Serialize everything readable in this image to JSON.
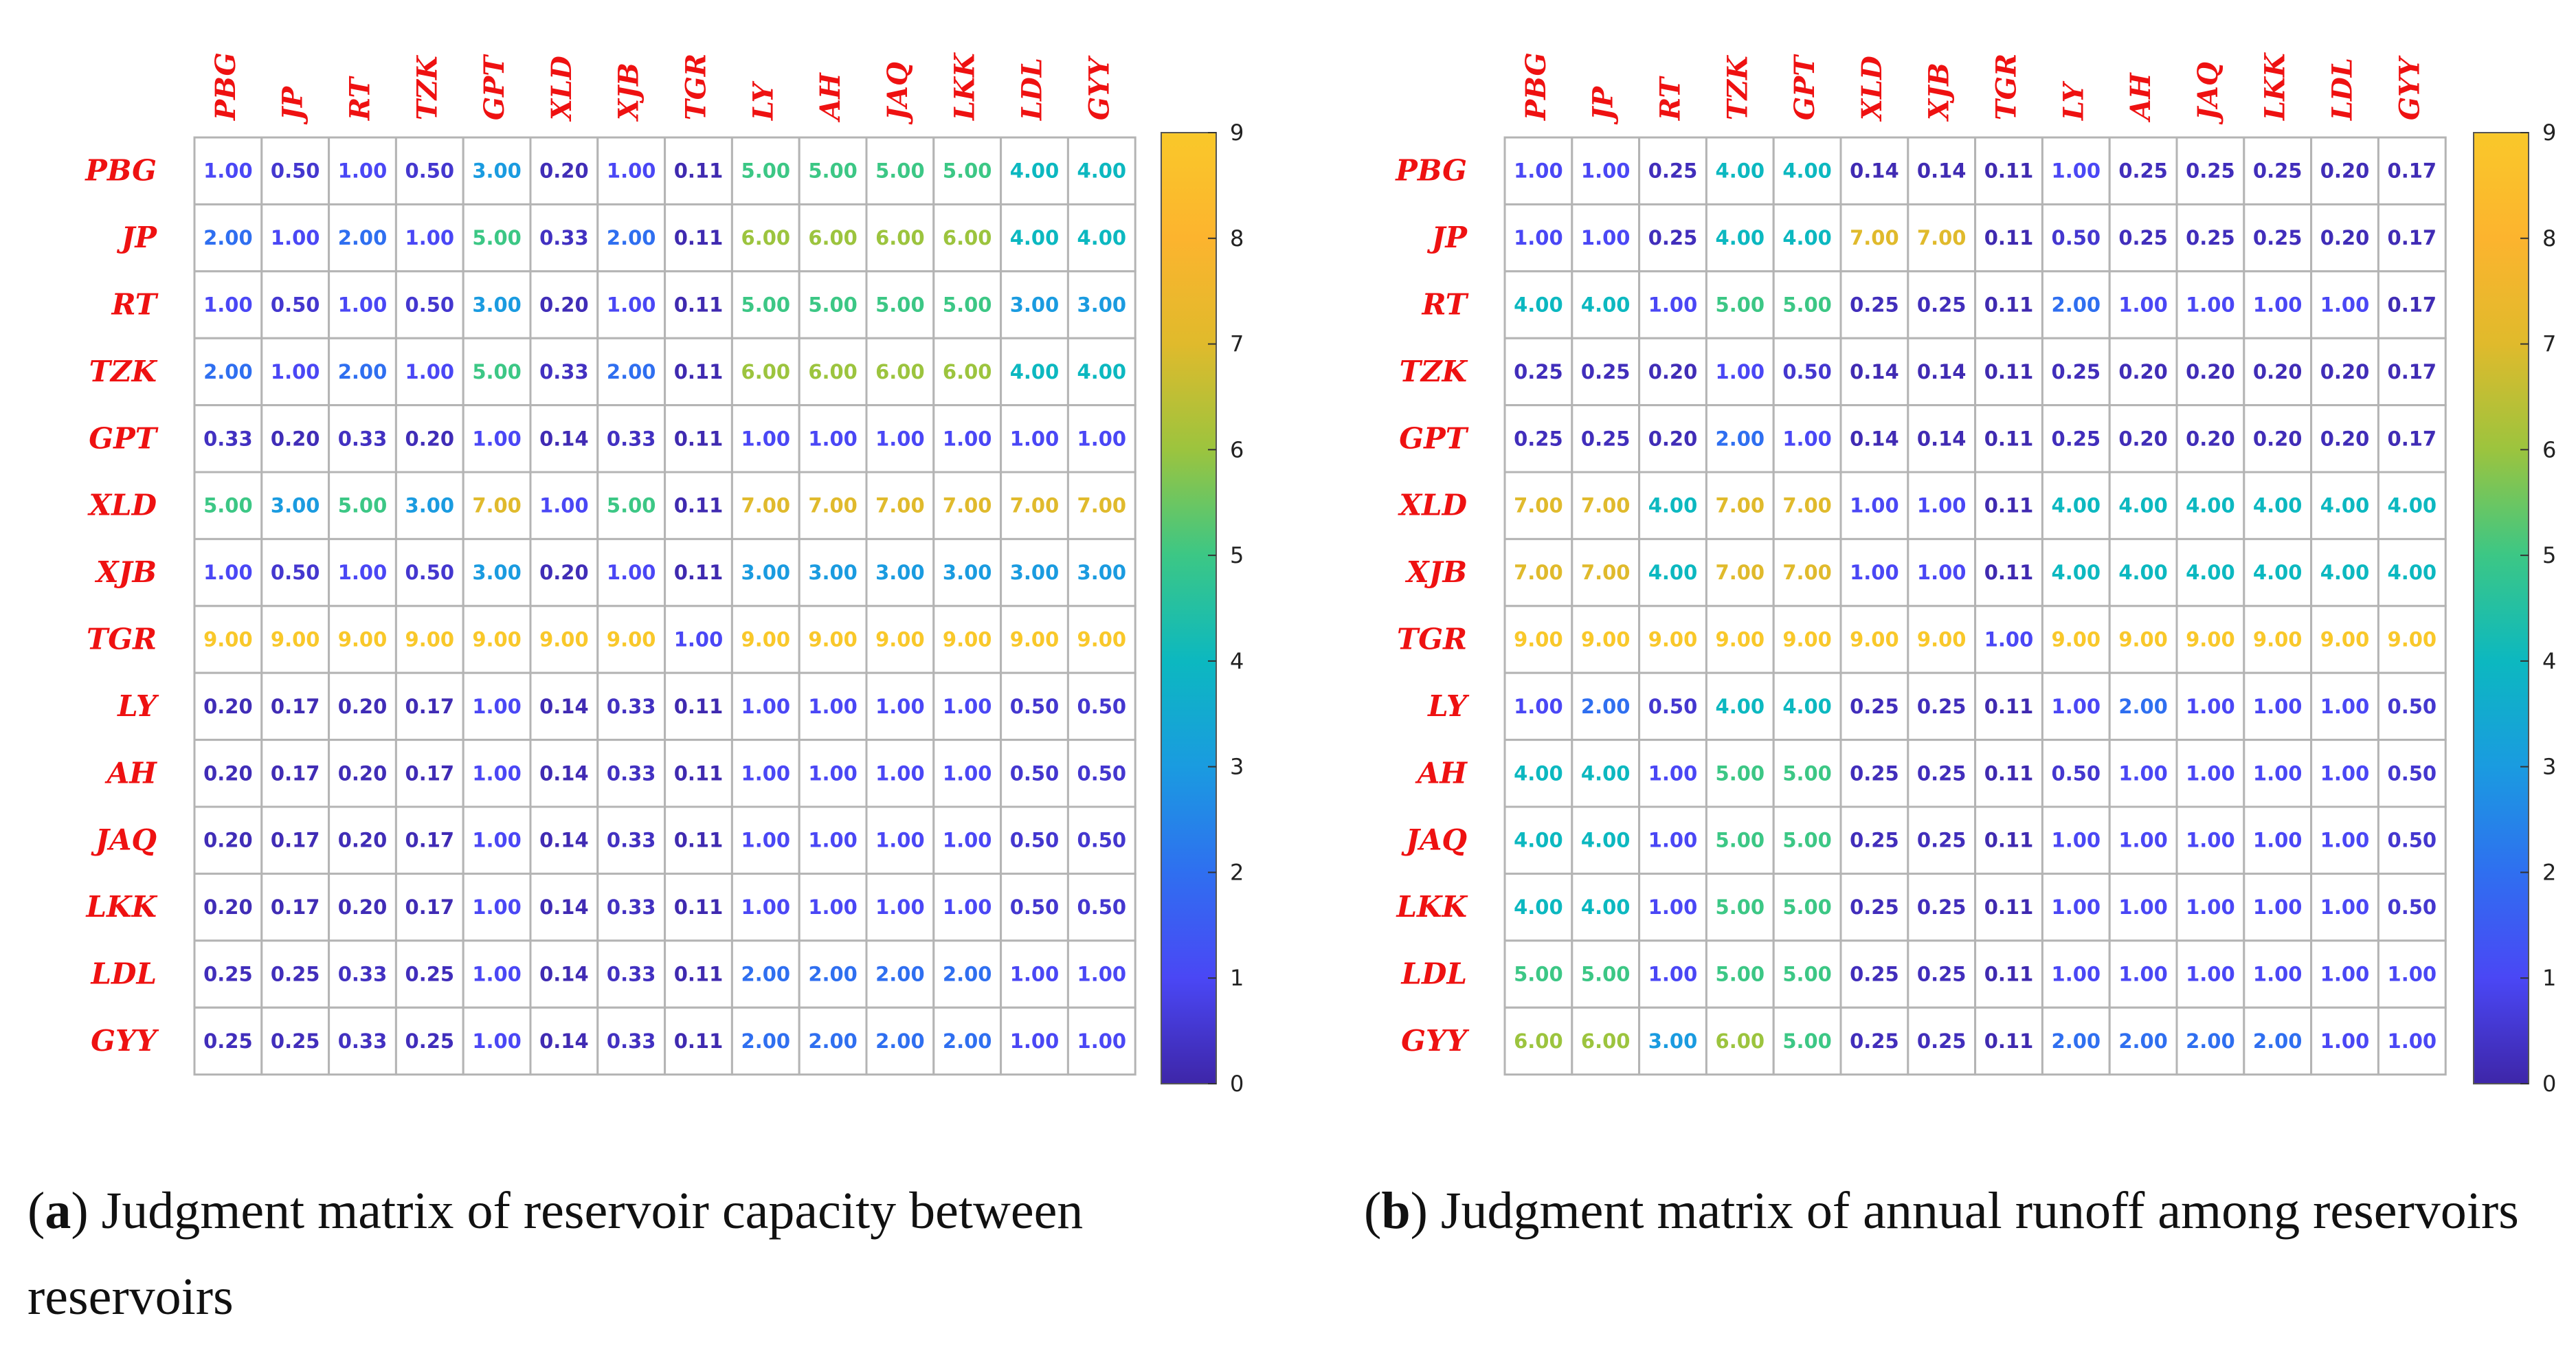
{
  "colors": {
    "label_red": "#ee1111",
    "grid": "#b4b4b4",
    "colormap": [
      "#3e26a8",
      "#4a47f5",
      "#2f6ff0",
      "#1a9be0",
      "#0cb8c0",
      "#3cc785",
      "#9cc43e",
      "#e0ba2c",
      "#fcb42e",
      "#f9c82a"
    ]
  },
  "chart_data": [
    {
      "type": "heatmap",
      "panel": "a",
      "caption_letter": "a",
      "caption_text": "Judgment matrix of reservoir capacity between reservoirs",
      "rows": [
        "PBG",
        "JP",
        "RT",
        "TZK",
        "GPT",
        "XLD",
        "XJB",
        "TGR",
        "LY",
        "AH",
        "JAQ",
        "LKK",
        "LDL",
        "GYY"
      ],
      "cols": [
        "PBG",
        "JP",
        "RT",
        "TZK",
        "GPT",
        "XLD",
        "XJB",
        "TGR",
        "LY",
        "AH",
        "JAQ",
        "LKK",
        "LDL",
        "GYY"
      ],
      "values": [
        [
          "1.00",
          "0.50",
          "1.00",
          "0.50",
          "3.00",
          "0.20",
          "1.00",
          "0.11",
          "5.00",
          "5.00",
          "5.00",
          "5.00",
          "4.00",
          "4.00"
        ],
        [
          "2.00",
          "1.00",
          "2.00",
          "1.00",
          "5.00",
          "0.33",
          "2.00",
          "0.11",
          "6.00",
          "6.00",
          "6.00",
          "6.00",
          "4.00",
          "4.00"
        ],
        [
          "1.00",
          "0.50",
          "1.00",
          "0.50",
          "3.00",
          "0.20",
          "1.00",
          "0.11",
          "5.00",
          "5.00",
          "5.00",
          "5.00",
          "3.00",
          "3.00"
        ],
        [
          "2.00",
          "1.00",
          "2.00",
          "1.00",
          "5.00",
          "0.33",
          "2.00",
          "0.11",
          "6.00",
          "6.00",
          "6.00",
          "6.00",
          "4.00",
          "4.00"
        ],
        [
          "0.33",
          "0.20",
          "0.33",
          "0.20",
          "1.00",
          "0.14",
          "0.33",
          "0.11",
          "1.00",
          "1.00",
          "1.00",
          "1.00",
          "1.00",
          "1.00"
        ],
        [
          "5.00",
          "3.00",
          "5.00",
          "3.00",
          "7.00",
          "1.00",
          "5.00",
          "0.11",
          "7.00",
          "7.00",
          "7.00",
          "7.00",
          "7.00",
          "7.00"
        ],
        [
          "1.00",
          "0.50",
          "1.00",
          "0.50",
          "3.00",
          "0.20",
          "1.00",
          "0.11",
          "3.00",
          "3.00",
          "3.00",
          "3.00",
          "3.00",
          "3.00"
        ],
        [
          "9.00",
          "9.00",
          "9.00",
          "9.00",
          "9.00",
          "9.00",
          "9.00",
          "1.00",
          "9.00",
          "9.00",
          "9.00",
          "9.00",
          "9.00",
          "9.00"
        ],
        [
          "0.20",
          "0.17",
          "0.20",
          "0.17",
          "1.00",
          "0.14",
          "0.33",
          "0.11",
          "1.00",
          "1.00",
          "1.00",
          "1.00",
          "0.50",
          "0.50"
        ],
        [
          "0.20",
          "0.17",
          "0.20",
          "0.17",
          "1.00",
          "0.14",
          "0.33",
          "0.11",
          "1.00",
          "1.00",
          "1.00",
          "1.00",
          "0.50",
          "0.50"
        ],
        [
          "0.20",
          "0.17",
          "0.20",
          "0.17",
          "1.00",
          "0.14",
          "0.33",
          "0.11",
          "1.00",
          "1.00",
          "1.00",
          "1.00",
          "0.50",
          "0.50"
        ],
        [
          "0.20",
          "0.17",
          "0.20",
          "0.17",
          "1.00",
          "0.14",
          "0.33",
          "0.11",
          "1.00",
          "1.00",
          "1.00",
          "1.00",
          "0.50",
          "0.50"
        ],
        [
          "0.25",
          "0.25",
          "0.33",
          "0.25",
          "1.00",
          "0.14",
          "0.33",
          "0.11",
          "2.00",
          "2.00",
          "2.00",
          "2.00",
          "1.00",
          "1.00"
        ],
        [
          "0.25",
          "0.25",
          "0.33",
          "0.25",
          "1.00",
          "0.14",
          "0.33",
          "0.11",
          "2.00",
          "2.00",
          "2.00",
          "2.00",
          "1.00",
          "1.00"
        ]
      ],
      "colorbar": {
        "min": 0,
        "max": 9,
        "ticks": [
          "0",
          "1",
          "2",
          "3",
          "4",
          "5",
          "6",
          "7",
          "8",
          "9"
        ]
      }
    },
    {
      "type": "heatmap",
      "panel": "b",
      "caption_letter": "b",
      "caption_text": "Judgment matrix of annual runoff among reservoirs",
      "rows": [
        "PBG",
        "JP",
        "RT",
        "TZK",
        "GPT",
        "XLD",
        "XJB",
        "TGR",
        "LY",
        "AH",
        "JAQ",
        "LKK",
        "LDL",
        "GYY"
      ],
      "cols": [
        "PBG",
        "JP",
        "RT",
        "TZK",
        "GPT",
        "XLD",
        "XJB",
        "TGR",
        "LY",
        "AH",
        "JAQ",
        "LKK",
        "LDL",
        "GYY"
      ],
      "values": [
        [
          "1.00",
          "1.00",
          "0.25",
          "4.00",
          "4.00",
          "0.14",
          "0.14",
          "0.11",
          "1.00",
          "0.25",
          "0.25",
          "0.25",
          "0.20",
          "0.17"
        ],
        [
          "1.00",
          "1.00",
          "0.25",
          "4.00",
          "4.00",
          "7.00",
          "7.00",
          "0.11",
          "0.50",
          "0.25",
          "0.25",
          "0.25",
          "0.20",
          "0.17"
        ],
        [
          "4.00",
          "4.00",
          "1.00",
          "5.00",
          "5.00",
          "0.25",
          "0.25",
          "0.11",
          "2.00",
          "1.00",
          "1.00",
          "1.00",
          "1.00",
          "0.17"
        ],
        [
          "0.25",
          "0.25",
          "0.20",
          "1.00",
          "0.50",
          "0.14",
          "0.14",
          "0.11",
          "0.25",
          "0.20",
          "0.20",
          "0.20",
          "0.20",
          "0.17"
        ],
        [
          "0.25",
          "0.25",
          "0.20",
          "2.00",
          "1.00",
          "0.14",
          "0.14",
          "0.11",
          "0.25",
          "0.20",
          "0.20",
          "0.20",
          "0.20",
          "0.17"
        ],
        [
          "7.00",
          "7.00",
          "4.00",
          "7.00",
          "7.00",
          "1.00",
          "1.00",
          "0.11",
          "4.00",
          "4.00",
          "4.00",
          "4.00",
          "4.00",
          "4.00"
        ],
        [
          "7.00",
          "7.00",
          "4.00",
          "7.00",
          "7.00",
          "1.00",
          "1.00",
          "0.11",
          "4.00",
          "4.00",
          "4.00",
          "4.00",
          "4.00",
          "4.00"
        ],
        [
          "9.00",
          "9.00",
          "9.00",
          "9.00",
          "9.00",
          "9.00",
          "9.00",
          "1.00",
          "9.00",
          "9.00",
          "9.00",
          "9.00",
          "9.00",
          "9.00"
        ],
        [
          "1.00",
          "2.00",
          "0.50",
          "4.00",
          "4.00",
          "0.25",
          "0.25",
          "0.11",
          "1.00",
          "2.00",
          "1.00",
          "1.00",
          "1.00",
          "0.50"
        ],
        [
          "4.00",
          "4.00",
          "1.00",
          "5.00",
          "5.00",
          "0.25",
          "0.25",
          "0.11",
          "0.50",
          "1.00",
          "1.00",
          "1.00",
          "1.00",
          "0.50"
        ],
        [
          "4.00",
          "4.00",
          "1.00",
          "5.00",
          "5.00",
          "0.25",
          "0.25",
          "0.11",
          "1.00",
          "1.00",
          "1.00",
          "1.00",
          "1.00",
          "0.50"
        ],
        [
          "4.00",
          "4.00",
          "1.00",
          "5.00",
          "5.00",
          "0.25",
          "0.25",
          "0.11",
          "1.00",
          "1.00",
          "1.00",
          "1.00",
          "1.00",
          "0.50"
        ],
        [
          "5.00",
          "5.00",
          "1.00",
          "5.00",
          "5.00",
          "0.25",
          "0.25",
          "0.11",
          "1.00",
          "1.00",
          "1.00",
          "1.00",
          "1.00",
          "1.00"
        ],
        [
          "6.00",
          "6.00",
          "3.00",
          "6.00",
          "5.00",
          "0.25",
          "0.25",
          "0.11",
          "2.00",
          "2.00",
          "2.00",
          "2.00",
          "1.00",
          "1.00"
        ]
      ],
      "colorbar": {
        "min": 0,
        "max": 9,
        "ticks": [
          "0",
          "1",
          "2",
          "3",
          "4",
          "5",
          "6",
          "7",
          "8",
          "9"
        ]
      }
    }
  ]
}
